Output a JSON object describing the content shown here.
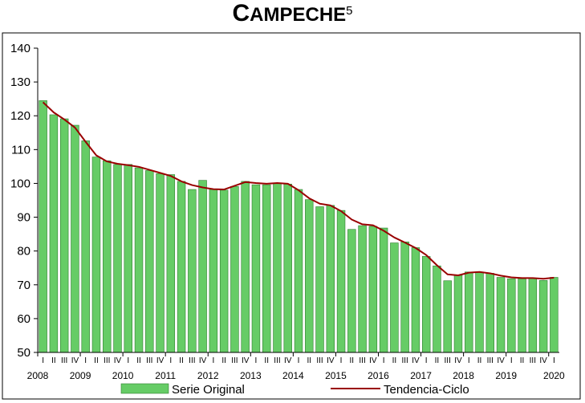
{
  "title": {
    "first": "C",
    "rest": "AMPECHE",
    "sup": "5"
  },
  "colors": {
    "bar": "#66cc66",
    "bar_edge": "#2e7d2e",
    "trend": "#990000"
  },
  "chart_data": {
    "type": "bar",
    "title": "CAMPECHE5",
    "ylim": [
      50,
      140
    ],
    "yticks": [
      "50",
      "60",
      "70",
      "80",
      "90",
      "100",
      "110",
      "120",
      "130",
      "140"
    ],
    "quarter_labels": [
      "I",
      "II",
      "III",
      "IV"
    ],
    "years": [
      "2008",
      "2009",
      "2010",
      "2011",
      "2012",
      "2013",
      "2014",
      "2015",
      "2016",
      "2017",
      "2018",
      "2019",
      "2020"
    ],
    "grid": false,
    "legend_position": "bottom",
    "series": [
      {
        "name": "Serie Original",
        "kind": "bar",
        "values": [
          124.5,
          120.3,
          119.1,
          117.2,
          112.6,
          107.8,
          106.7,
          105.6,
          105.6,
          104.6,
          103.8,
          102.9,
          102.6,
          100.6,
          98.2,
          100.9,
          98.2,
          98.0,
          99.1,
          100.6,
          99.6,
          99.6,
          100.0,
          99.8,
          98.2,
          95.2,
          93.1,
          93.5,
          92.0,
          86.4,
          87.5,
          87.3,
          86.8,
          82.4,
          82.7,
          81.0,
          78.4,
          75.6,
          71.2,
          72.8,
          73.8,
          73.8,
          73.4,
          72.2,
          71.8,
          71.8,
          72.0,
          71.3,
          72.2
        ]
      },
      {
        "name": "Tendencia-Ciclo",
        "kind": "line",
        "values": [
          124.0,
          121.0,
          118.9,
          116.5,
          112.3,
          108.3,
          106.5,
          105.8,
          105.4,
          104.9,
          104.0,
          103.1,
          102.2,
          100.6,
          99.5,
          98.8,
          98.3,
          98.2,
          99.3,
          100.4,
          100.1,
          99.9,
          100.1,
          99.9,
          98.0,
          95.6,
          94.0,
          93.5,
          91.8,
          89.3,
          87.9,
          87.6,
          86.0,
          84.0,
          82.5,
          80.9,
          78.8,
          75.8,
          73.1,
          72.8,
          73.6,
          73.8,
          73.4,
          72.7,
          72.2,
          72.0,
          72.0,
          71.8,
          72.1
        ]
      }
    ]
  },
  "legend": {
    "bar_label": "Serie Original",
    "line_label": "Tendencia-Ciclo"
  }
}
